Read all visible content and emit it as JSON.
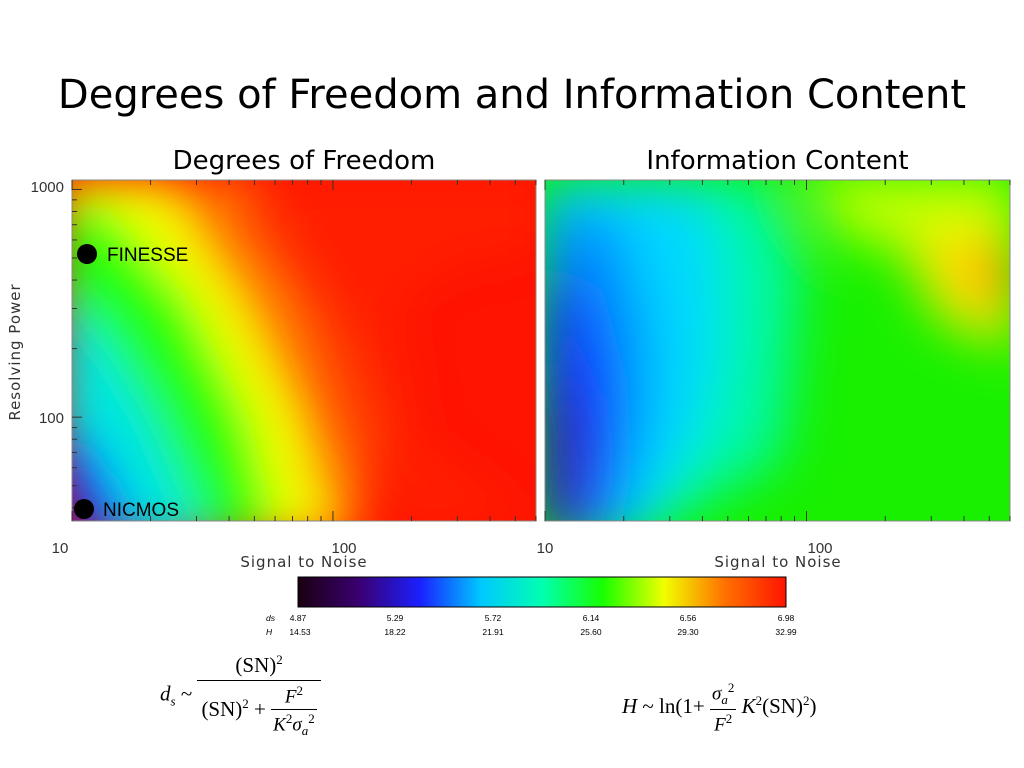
{
  "slide": {
    "title": "Degrees of Freedom and Information Content"
  },
  "chart_data": [
    {
      "type": "heatmap",
      "title": "Degrees of Freedom",
      "xlabel": "Signal to Noise",
      "ylabel": "Resolving Power",
      "x_scale": "log",
      "y_scale": "log",
      "xlim": [
        10,
        600
      ],
      "ylim": [
        35,
        1100
      ],
      "x_tick_labels": [
        "10",
        "100"
      ],
      "y_tick_labels": [
        "1000",
        "100"
      ],
      "colorscale": "rainbow",
      "grid": false,
      "annotations": [
        {
          "label": "FINESSE",
          "x": 11,
          "y": 500
        },
        {
          "label": "NICMOS",
          "x": 11,
          "y": 40
        }
      ]
    },
    {
      "type": "heatmap",
      "title": "Information Content",
      "xlabel": "Signal to Noise",
      "ylabel": "",
      "x_scale": "log",
      "y_scale": "log",
      "xlim": [
        10,
        600
      ],
      "ylim": [
        35,
        1100
      ],
      "x_tick_labels": [
        "10",
        "100"
      ],
      "colorscale": "rainbow",
      "grid": false
    }
  ],
  "colorbar": {
    "colors": [
      "#1a0010",
      "#3a0070",
      "#1a20ff",
      "#00c8ff",
      "#00ffb0",
      "#18ff00",
      "#f0ff00",
      "#ff7000",
      "#ff1400"
    ],
    "ds_label": "ds",
    "h_label": "H",
    "ds_values": [
      "4.87",
      "5.29",
      "5.72",
      "6.14",
      "6.56",
      "6.98"
    ],
    "h_values": [
      "14.53",
      "18.22",
      "21.91",
      "25.60",
      "29.30",
      "32.99"
    ]
  },
  "equations": {
    "ds": {
      "lhs": "d",
      "lhs_sub": "s",
      "tilde": "~",
      "num": "(SN)",
      "num_sup": "2",
      "den_a": "(SN)",
      "den_a_sup": "2",
      "plus": "+",
      "den_fnum": "F",
      "den_fnum_sup": "2",
      "den_fden": "K",
      "den_fden_sup": "2",
      "sigma": "σ",
      "sigma_sub": "a",
      "sigma_sup": "2"
    },
    "h": {
      "lhs": "H",
      "tilde": "~",
      "ln": "ln(1",
      "plus": "+",
      "fnum": "σ",
      "fnum_sub": "a",
      "fnum_sup": "2",
      "fden": "F",
      "fden_sup": "2",
      "k": "K",
      "k_sup": "2",
      "sn": "(SN)",
      "sn_sup": "2",
      "close": ")"
    }
  }
}
